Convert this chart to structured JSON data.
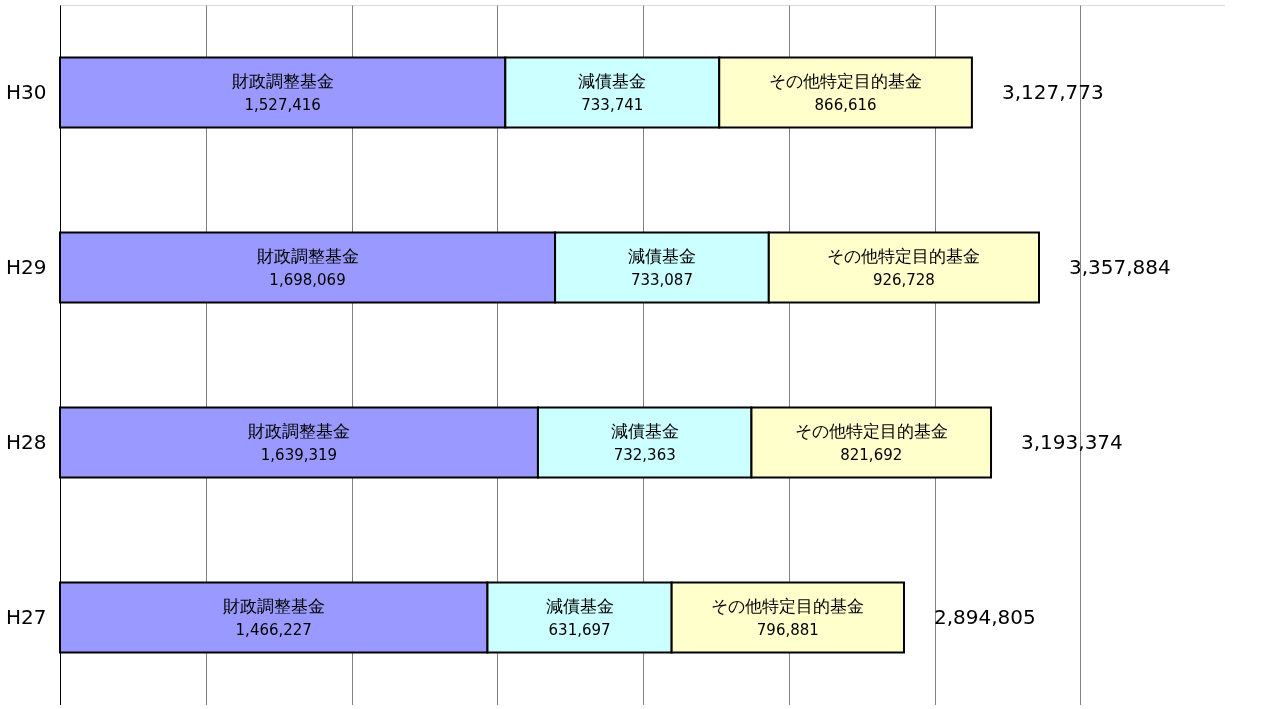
{
  "chart_data": {
    "type": "bar",
    "orientation": "horizontal",
    "stacked": true,
    "categories": [
      "H30",
      "H29",
      "H28",
      "H27"
    ],
    "series": [
      {
        "name": "財政調整基金",
        "color": "#9999ff",
        "values": [
          1527416,
          1698069,
          1639319,
          1466227
        ],
        "value_labels": [
          "1,527,416",
          "1,698,069",
          "1,639,319",
          "1,466,227"
        ]
      },
      {
        "name": "減債基金",
        "color": "#ccffff",
        "values": [
          733741,
          733087,
          732363,
          631697
        ],
        "value_labels": [
          "733,741",
          "733,087",
          "732,363",
          "631,697"
        ]
      },
      {
        "name": "その他特定目的基金",
        "color": "#ffffcc",
        "values": [
          866616,
          926728,
          821692,
          796881
        ],
        "value_labels": [
          "866,616",
          "926,728",
          "821,692",
          "796,881"
        ]
      }
    ],
    "totals": [
      "3,127,773",
      "3,357,884",
      "3,193,374",
      "2,894,805"
    ],
    "grid": "x",
    "tick_labels": "y",
    "legend": false
  }
}
